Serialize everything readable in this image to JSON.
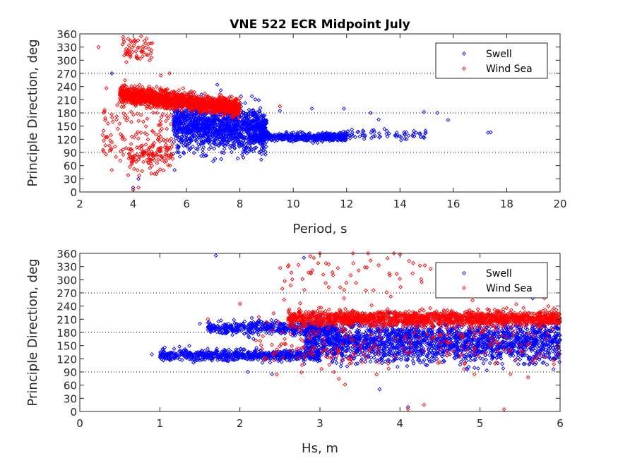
{
  "chart_data": [
    {
      "type": "scatter",
      "title": "VNE 522 ECR Midpoint July",
      "xlabel": "Period, s",
      "ylabel": "Principle Direction, deg",
      "xlim": [
        2,
        20
      ],
      "ylim": [
        0,
        360
      ],
      "xticks": [
        2,
        4,
        6,
        8,
        10,
        12,
        14,
        16,
        18,
        20
      ],
      "yticks": [
        0,
        30,
        60,
        90,
        120,
        150,
        180,
        210,
        240,
        270,
        300,
        330,
        360
      ],
      "reference_lines": [
        90,
        180,
        270
      ],
      "grid": false,
      "legend": {
        "position": "top-right",
        "entries": [
          "Swell",
          "Wind Sea"
        ]
      },
      "series": [
        {
          "name": "Swell",
          "color": "#0000ff",
          "marker": "diamond",
          "clusters": [
            {
              "x_range": [
                5.5,
                9
              ],
              "y_center": 155,
              "y_spread": 35,
              "count": 1400
            },
            {
              "x_range": [
                8.5,
                12
              ],
              "y_center": 125,
              "y_spread": 8,
              "count": 450
            },
            {
              "x_range": [
                11,
                15
              ],
              "y_center": 130,
              "y_spread": 8,
              "count": 90
            }
          ],
          "points": [
            [
              3.2,
              270
            ],
            [
              4.0,
              10
            ],
            [
              4.2,
              30
            ],
            [
              7.0,
              70
            ],
            [
              7.3,
              75
            ],
            [
              14.6,
              135
            ],
            [
              17.3,
              135
            ],
            [
              17.4,
              136
            ],
            [
              15.4,
              180
            ],
            [
              14.9,
              182
            ],
            [
              12.9,
              180
            ],
            [
              10.7,
              190
            ],
            [
              11.9,
              190
            ],
            [
              9.5,
              185
            ],
            [
              13.2,
              165
            ],
            [
              15.8,
              164
            ]
          ]
        },
        {
          "name": "Wind Sea",
          "color": "#ff0000",
          "marker": "diamond",
          "clusters": [
            {
              "x_range": [
                3.5,
                8
              ],
              "y_center": 210,
              "y_spread": 14,
              "count": 1600
            },
            {
              "x_range": [
                3.8,
                5.5
              ],
              "y_center": 85,
              "y_spread": 30,
              "count": 120
            },
            {
              "x_range": [
                3.6,
                4.8
              ],
              "y_center": 325,
              "y_spread": 25,
              "count": 60
            },
            {
              "x_range": [
                2.8,
                5.5
              ],
              "y_center": 150,
              "y_spread": 80,
              "count": 120
            }
          ],
          "points": [
            [
              2.7,
              330
            ],
            [
              3.2,
              50
            ],
            [
              4.0,
              5
            ],
            [
              4.2,
              10
            ],
            [
              5.0,
              115
            ],
            [
              9.5,
              195
            ]
          ]
        }
      ]
    },
    {
      "type": "scatter",
      "title": "",
      "xlabel": "Hs, m",
      "ylabel": "Principle Direction, deg",
      "xlim": [
        0,
        6
      ],
      "ylim": [
        0,
        360
      ],
      "xticks": [
        0,
        1,
        2,
        3,
        4,
        5,
        6
      ],
      "yticks": [
        0,
        30,
        60,
        90,
        120,
        150,
        180,
        210,
        240,
        270,
        300,
        330,
        360
      ],
      "reference_lines": [
        90,
        180,
        270
      ],
      "grid": false,
      "legend": {
        "position": "top-right",
        "entries": [
          "Swell",
          "Wind Sea"
        ]
      },
      "series": [
        {
          "name": "Swell",
          "color": "#0000ff",
          "marker": "diamond",
          "clusters": [
            {
              "x_range": [
                1.0,
                3.0
              ],
              "y_center": 128,
              "y_spread": 10,
              "count": 700
            },
            {
              "x_range": [
                1.6,
                3.2
              ],
              "y_center": 190,
              "y_spread": 12,
              "count": 500
            },
            {
              "x_range": [
                2.8,
                6.0
              ],
              "y_center": 160,
              "y_spread": 38,
              "count": 2200
            }
          ],
          "points": [
            [
              0.9,
              130
            ],
            [
              1.5,
              200
            ],
            [
              2.1,
              90
            ],
            [
              2.4,
              85
            ],
            [
              2.8,
              350
            ],
            [
              4.1,
              10
            ],
            [
              1.7,
              355
            ]
          ]
        },
        {
          "name": "Wind Sea",
          "color": "#ff0000",
          "marker": "diamond",
          "clusters": [
            {
              "x_range": [
                2.6,
                6.0
              ],
              "y_center": 212,
              "y_spread": 14,
              "count": 1500
            },
            {
              "x_range": [
                2.2,
                6.0
              ],
              "y_center": 160,
              "y_spread": 60,
              "count": 250
            },
            {
              "x_range": [
                2.5,
                4.4
              ],
              "y_center": 310,
              "y_spread": 40,
              "count": 60
            }
          ],
          "points": [
            [
              2.0,
              245
            ],
            [
              2.6,
              330
            ],
            [
              3.0,
              360
            ],
            [
              4.1,
              5
            ],
            [
              4.3,
              15
            ],
            [
              5.3,
              5
            ],
            [
              1.6,
              210
            ]
          ]
        }
      ]
    }
  ]
}
